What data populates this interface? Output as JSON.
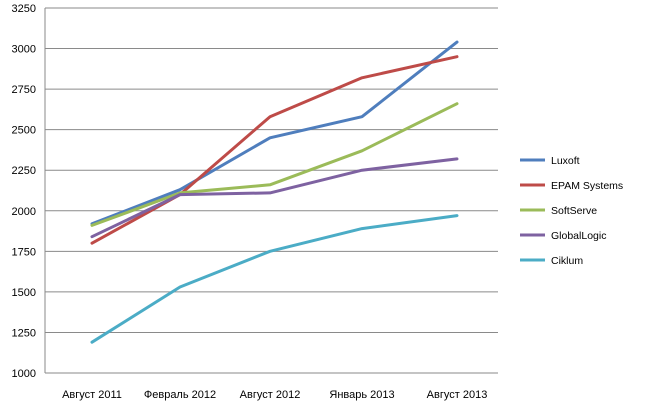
{
  "chart_data": {
    "type": "line",
    "x": [
      "Август 2011",
      "Февраль 2012",
      "Август 2012",
      "Январь 2013",
      "Август 2013"
    ],
    "ylim": [
      1000,
      3250
    ],
    "yticks": [
      1000,
      1250,
      1500,
      1750,
      2000,
      2250,
      2500,
      2750,
      3000,
      3250
    ],
    "grid": true,
    "legend_position": "right",
    "series": [
      {
        "name": "Luxoft",
        "color": "#4F7EBD",
        "values": [
          1920,
          2130,
          2450,
          2580,
          3040
        ]
      },
      {
        "name": "EPAM Systems",
        "color": "#BE4B48",
        "values": [
          1800,
          2100,
          2580,
          2820,
          2950
        ]
      },
      {
        "name": "SoftServe",
        "color": "#9BBB59",
        "values": [
          1910,
          2110,
          2160,
          2370,
          2660
        ]
      },
      {
        "name": "GlobalLogic",
        "color": "#7E62A1",
        "values": [
          1840,
          2100,
          2110,
          2250,
          2320
        ]
      },
      {
        "name": "Ciklum",
        "color": "#4BACC6",
        "values": [
          1190,
          1530,
          1750,
          1890,
          1970
        ]
      }
    ]
  }
}
